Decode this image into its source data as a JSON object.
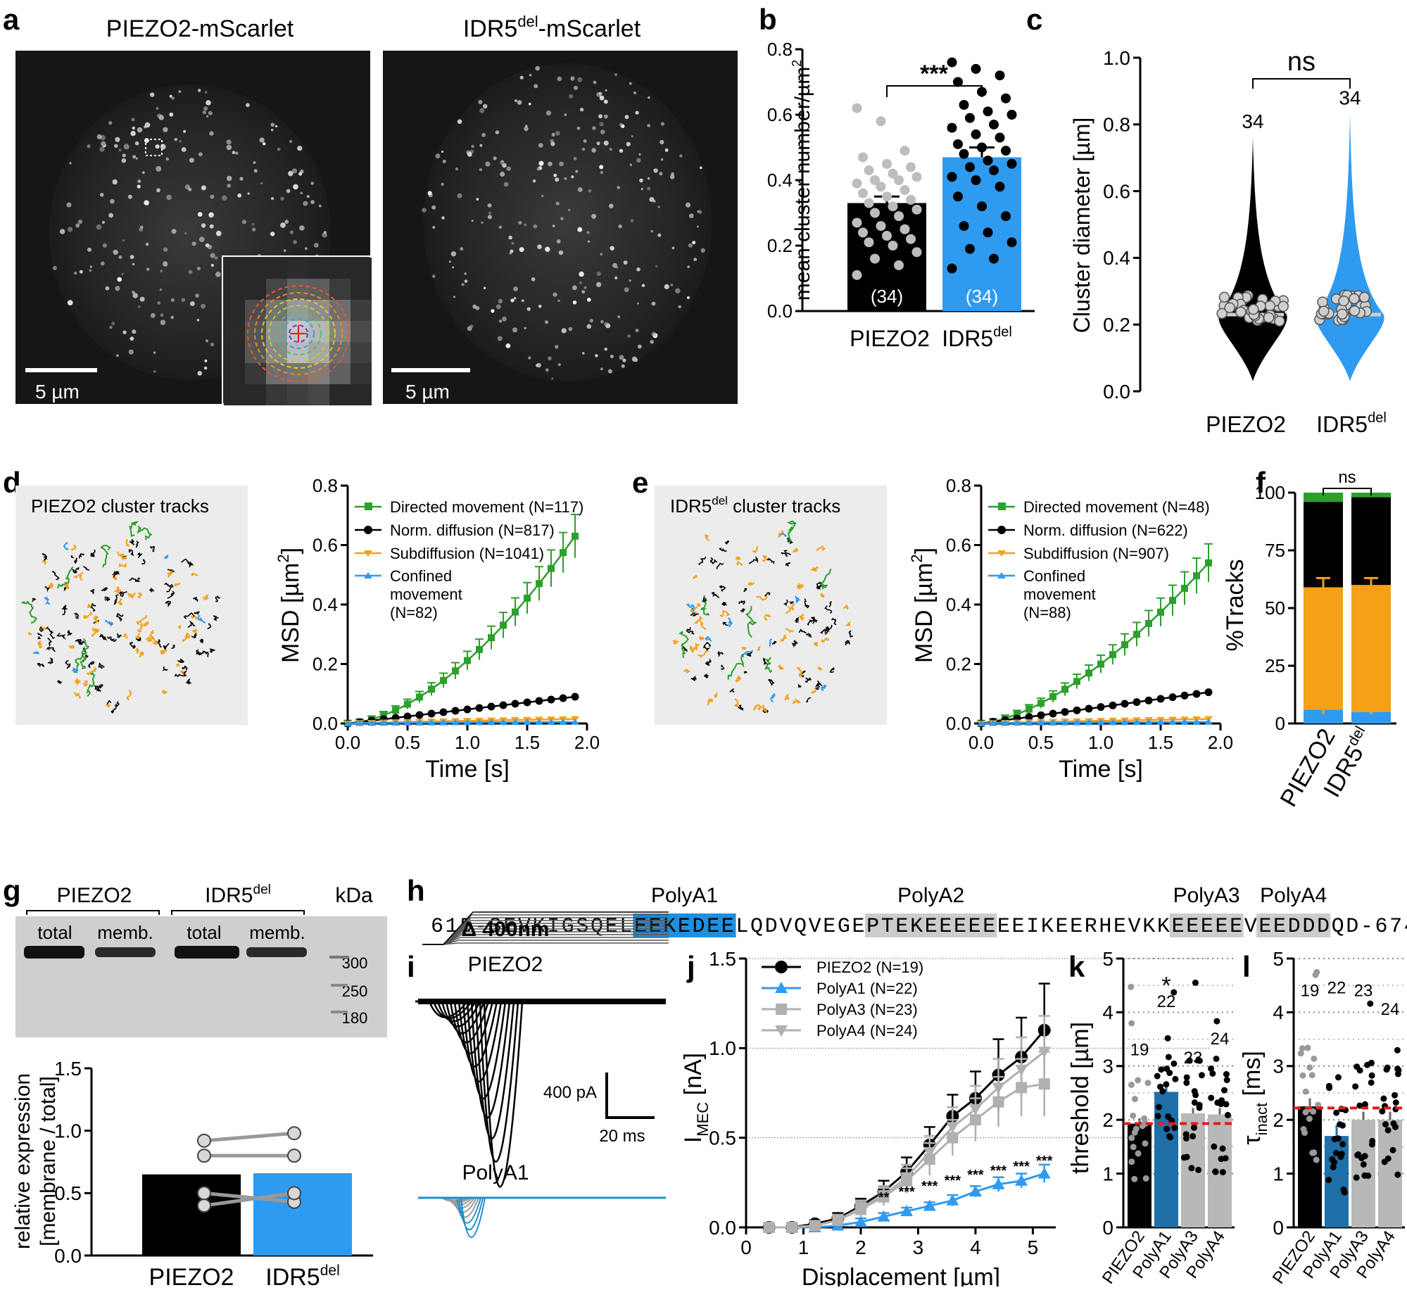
{
  "panels": {
    "a": "a",
    "b": "b",
    "c": "c",
    "d": "d",
    "e": "e",
    "f": "f",
    "g": "g",
    "h": "h",
    "i": "i",
    "j": "j",
    "k": "k",
    "l": "l"
  },
  "panel_a": {
    "title_left": "PIEZO2-mScarlet",
    "title_right_base": "IDR5",
    "title_right_sup": "del",
    "title_right_tail": "-mScarlet",
    "scale_left": "5 µm",
    "scale_right": "5 µm"
  },
  "panel_d": {
    "title": "PIEZO2 cluster tracks",
    "legend": [
      "Directed movement (N=117)",
      "Norm. diffusion (N=817)",
      "Subdiffusion (N=1041)",
      "Confined",
      "movement",
      "(N=82)"
    ]
  },
  "panel_e": {
    "title_base": "IDR5",
    "title_sup": "del",
    "title_tail": " cluster tracks",
    "legend": [
      "Directed movement (N=48)",
      "Norm. diffusion (N=622)",
      "Subdiffusion (N=907)",
      "Confined",
      "movement",
      "(N=88)"
    ]
  },
  "panel_f": {
    "ns": "ns",
    "ylabel": "%Tracks",
    "xlabels": [
      "PIEZO2",
      "IDR5"
    ],
    "xlabel_sup": "del"
  },
  "panel_g": {
    "group_left": "PIEZO2",
    "group_right_base": "IDR5",
    "group_right_sup": "del",
    "kda": "kDa",
    "lanes": [
      "total",
      "memb.",
      "total",
      "memb."
    ],
    "markers": [
      "300",
      "250",
      "180"
    ]
  },
  "panel_h": {
    "labels": [
      "PolyA1",
      "PolyA2",
      "PolyA3",
      "PolyA4"
    ],
    "sequence_prefix": "615-",
    "sequence": "SEVKIGSQELEEKEDEELQDVQVEGEPTEKEEEEEEEIKEERHEVKKEEEEEVEEDDDQD",
    "sequence_suffix": "-674"
  },
  "panel_i": {
    "step": "Δ 400nm",
    "trace1": "PIEZO2",
    "trace2": "PolyA1",
    "scale_y": "400 pA",
    "scale_x": "20 ms"
  },
  "panel_j": {
    "legend": [
      "PIEZO2 (N=19)",
      "PolyA1 (N=22)",
      "PolyA3 (N=23)",
      "PolyA4 (N=24)"
    ],
    "sig": [
      "**",
      "***",
      "***",
      "***",
      "***",
      "***",
      "***",
      "***"
    ]
  },
  "panel_k": {
    "star": "*",
    "ns": [
      "19",
      "22",
      "23",
      "24"
    ]
  },
  "panel_l": {
    "ns": [
      "19",
      "22",
      "23",
      "24"
    ]
  },
  "colors": {
    "blue": "#2f9bf0",
    "green": "#2ca02c",
    "orange": "#f5a118",
    "gray": "#bdbdbd",
    "black": "#000000",
    "red": "#e41a1c",
    "seqblue": "#1e8fe0"
  },
  "chart_data": [
    {
      "id": "b",
      "type": "bar",
      "categories": [
        "PIEZO2",
        "IDR5del"
      ],
      "values": [
        0.33,
        0.47
      ],
      "errors": [
        0.02,
        0.03
      ],
      "n_labels": [
        "(34)",
        "(34)"
      ],
      "significance": "***",
      "ylabel": "mean cluster number/µm",
      "ylabel_sup": "2",
      "ylim": [
        0,
        0.8
      ],
      "yticks": [
        "0.0",
        "0.2",
        "0.4",
        "0.6",
        "0.8"
      ],
      "points": [
        [
          0.62,
          0.58,
          0.49,
          0.47,
          0.45,
          0.44,
          0.43,
          0.42,
          0.41,
          0.4,
          0.4,
          0.39,
          0.38,
          0.37,
          0.36,
          0.35,
          0.34,
          0.33,
          0.32,
          0.31,
          0.3,
          0.29,
          0.27,
          0.26,
          0.25,
          0.24,
          0.23,
          0.22,
          0.21,
          0.2,
          0.18,
          0.16,
          0.14,
          0.11
        ],
        [
          0.76,
          0.74,
          0.72,
          0.7,
          0.67,
          0.65,
          0.63,
          0.61,
          0.6,
          0.59,
          0.57,
          0.56,
          0.54,
          0.53,
          0.51,
          0.5,
          0.49,
          0.48,
          0.46,
          0.45,
          0.44,
          0.43,
          0.41,
          0.4,
          0.38,
          0.35,
          0.32,
          0.29,
          0.26,
          0.24,
          0.21,
          0.19,
          0.16,
          0.13
        ]
      ]
    },
    {
      "id": "c",
      "type": "violin",
      "categories": [
        "PIEZO2",
        "IDR5del"
      ],
      "n_labels": [
        "34",
        "34"
      ],
      "significance": "ns",
      "ylabel": "Cluster diameter [µm]",
      "ylim": [
        0,
        1.0
      ],
      "yticks": [
        "0.0",
        "0.2",
        "0.4",
        "0.6",
        "0.8",
        "1.0"
      ],
      "medians": [
        0.23,
        0.23
      ],
      "maxima": [
        0.76,
        0.83
      ]
    },
    {
      "id": "d",
      "type": "line",
      "title": "MSD",
      "xlabel": "Time [s]",
      "ylabel": "MSD [µm",
      "ylabel_sup": "2",
      "ylabel_tail": "]",
      "xlim": [
        0,
        2.0
      ],
      "ylim": [
        0,
        0.8
      ],
      "xticks": [
        "0.0",
        "0.5",
        "1.0",
        "1.5",
        "2.0"
      ],
      "yticks": [
        "0.0",
        "0.2",
        "0.4",
        "0.6",
        "0.8"
      ],
      "series": [
        {
          "name": "Directed movement",
          "end": 0.63,
          "power": 1.7
        },
        {
          "name": "Norm. diffusion",
          "end": 0.09,
          "power": 1.0
        },
        {
          "name": "Subdiffusion",
          "end": 0.015,
          "power": 0.8
        },
        {
          "name": "Confined movement",
          "end": 0.005,
          "power": 0.5
        }
      ]
    },
    {
      "id": "e",
      "type": "line",
      "xlabel": "Time [s]",
      "ylabel": "MSD [µm",
      "ylabel_sup": "2",
      "ylabel_tail": "]",
      "xlim": [
        0,
        2.0
      ],
      "ylim": [
        0,
        0.8
      ],
      "xticks": [
        "0.0",
        "0.5",
        "1.0",
        "1.5",
        "2.0"
      ],
      "yticks": [
        "0.0",
        "0.2",
        "0.4",
        "0.6",
        "0.8"
      ],
      "series": [
        {
          "name": "Directed movement",
          "end": 0.54,
          "power": 1.55
        },
        {
          "name": "Norm. diffusion",
          "end": 0.105,
          "power": 1.0
        },
        {
          "name": "Subdiffusion",
          "end": 0.015,
          "power": 0.8
        },
        {
          "name": "Confined movement",
          "end": 0.005,
          "power": 0.5
        }
      ]
    },
    {
      "id": "f",
      "type": "bar",
      "categories": [
        "PIEZO2",
        "IDR5del"
      ],
      "series": [
        {
          "name": "Confined",
          "values": [
            6,
            5
          ]
        },
        {
          "name": "Subdiffusion",
          "values": [
            53,
            55
          ]
        },
        {
          "name": "Norm. diffusion",
          "values": [
            37,
            38
          ]
        },
        {
          "name": "Directed",
          "values": [
            4,
            2
          ]
        }
      ],
      "ylim": [
        0,
        100
      ],
      "yticks": [
        "0",
        "25",
        "50",
        "75",
        "100"
      ]
    },
    {
      "id": "g",
      "type": "bar",
      "categories": [
        "PIEZO2",
        "IDR5del"
      ],
      "values": [
        0.65,
        0.66
      ],
      "paired": [
        [
          0.92,
          0.98
        ],
        [
          0.8,
          0.8
        ],
        [
          0.5,
          0.43
        ],
        [
          0.4,
          0.5
        ]
      ],
      "ylabel1": "relative expression",
      "ylabel2": "[membrane / total]",
      "ylim": [
        0,
        1.5
      ],
      "yticks": [
        "0.0",
        "0.5",
        "1.0",
        "1.5"
      ]
    },
    {
      "id": "j",
      "type": "line",
      "xlabel": "Displacement [µm]",
      "ylabel": "I",
      "ylabel_sub": "MEC",
      "ylabel_tail": " [nA]",
      "xlim": [
        0,
        5.4
      ],
      "ylim": [
        0,
        1.5
      ],
      "xticks": [
        "0",
        "1",
        "2",
        "3",
        "4",
        "5"
      ],
      "yticks": [
        "0.0",
        "0.5",
        "1.0",
        "1.5"
      ],
      "x": [
        0.4,
        0.8,
        1.2,
        1.6,
        2.0,
        2.4,
        2.8,
        3.2,
        3.6,
        4.0,
        4.4,
        4.8,
        5.2
      ],
      "series": [
        {
          "name": "PIEZO2",
          "values": [
            0.0,
            0.0,
            0.02,
            0.05,
            0.12,
            0.2,
            0.31,
            0.46,
            0.62,
            0.72,
            0.85,
            0.95,
            1.1
          ],
          "err": [
            0.01,
            0.01,
            0.02,
            0.03,
            0.04,
            0.06,
            0.08,
            0.1,
            0.12,
            0.15,
            0.2,
            0.22,
            0.26
          ]
        },
        {
          "name": "PolyA1",
          "values": [
            0.0,
            0.0,
            0.0,
            0.01,
            0.03,
            0.06,
            0.09,
            0.12,
            0.15,
            0.2,
            0.24,
            0.26,
            0.3
          ],
          "err": [
            0.005,
            0.005,
            0.005,
            0.01,
            0.02,
            0.02,
            0.02,
            0.02,
            0.03,
            0.03,
            0.04,
            0.04,
            0.05
          ]
        },
        {
          "name": "PolyA3",
          "values": [
            0.0,
            0.0,
            0.01,
            0.04,
            0.1,
            0.17,
            0.26,
            0.38,
            0.5,
            0.6,
            0.7,
            0.78,
            0.8
          ],
          "err": [
            0.01,
            0.01,
            0.02,
            0.03,
            0.04,
            0.05,
            0.07,
            0.09,
            0.1,
            0.12,
            0.14,
            0.16,
            0.18
          ]
        },
        {
          "name": "PolyA4",
          "values": [
            0.0,
            0.0,
            0.01,
            0.04,
            0.11,
            0.18,
            0.28,
            0.42,
            0.56,
            0.66,
            0.78,
            0.88,
            0.98
          ],
          "err": [
            0.01,
            0.01,
            0.02,
            0.03,
            0.04,
            0.05,
            0.07,
            0.09,
            0.11,
            0.13,
            0.16,
            0.18,
            0.2
          ]
        }
      ]
    },
    {
      "id": "k",
      "type": "bar",
      "categories": [
        "PIEZO2",
        "PolyA1",
        "PolyA3",
        "PolyA4"
      ],
      "values": [
        1.93,
        2.52,
        2.12,
        2.1
      ],
      "errors": [
        0.1,
        0.15,
        0.1,
        0.12
      ],
      "ylabel": "threshold [µm]",
      "ylim": [
        0,
        5
      ],
      "yticks": [
        "0",
        "1",
        "2",
        "3",
        "4",
        "5"
      ],
      "reference": 1.93
    },
    {
      "id": "l",
      "type": "bar",
      "categories": [
        "PIEZO2",
        "PolyA1",
        "PolyA3",
        "PolyA4"
      ],
      "values": [
        2.25,
        1.7,
        2.0,
        2.0
      ],
      "errors": [
        0.15,
        0.2,
        0.15,
        0.15
      ],
      "ylabel": "τ",
      "ylabel_sub": "inact",
      "ylabel_tail": " [ms]",
      "ylim": [
        0,
        5
      ],
      "yticks": [
        "0",
        "1",
        "2",
        "3",
        "4",
        "5"
      ],
      "reference": 2.22
    }
  ]
}
